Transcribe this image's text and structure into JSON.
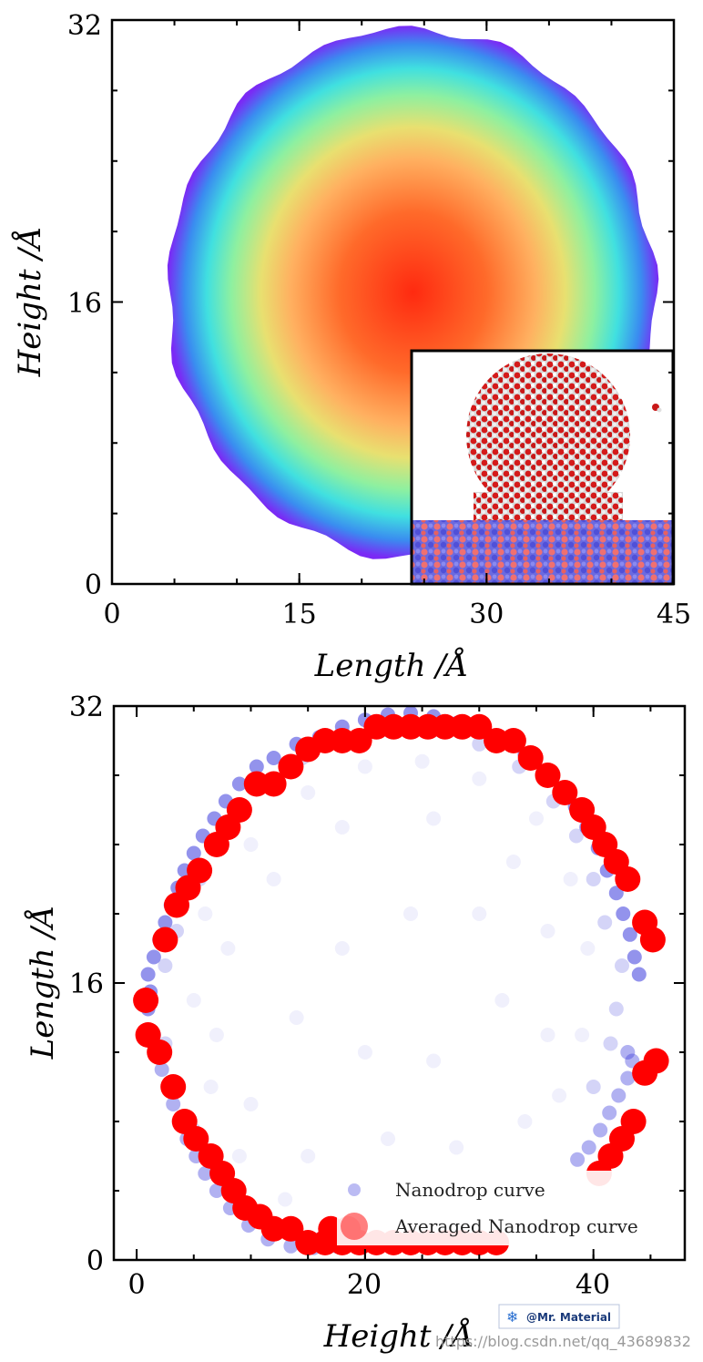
{
  "chart_data": [
    {
      "type": "heatmap",
      "title": "",
      "xlabel": "Length /Å",
      "ylabel": "Height /Å",
      "xlim": [
        0,
        45
      ],
      "ylim": [
        0,
        32
      ],
      "xticks": [
        0,
        15,
        30,
        45
      ],
      "yticks": [
        0,
        16,
        32
      ],
      "x_tick_labels": [
        "0",
        "15",
        "30",
        "45"
      ],
      "y_tick_labels": [
        "0",
        "16",
        "32"
      ],
      "drop": {
        "center_x": 24.0,
        "center_y": 16.5,
        "radius_x": 19.5,
        "radius_y": 15.0
      },
      "colormap": [
        "#ff2a10",
        "#ff6a2a",
        "#ffb060",
        "#e8e070",
        "#8ef0a0",
        "#40e0e0",
        "#3a8cf0",
        "#7a2af5"
      ],
      "inset": {
        "description": "molecular snapshot of water nanodrop on substrate"
      }
    },
    {
      "type": "scatter",
      "title": "",
      "xlabel": "Height /Å",
      "ylabel": "Length /Å",
      "xlim": [
        -2,
        48
      ],
      "ylim": [
        0,
        32
      ],
      "xticks": [
        0,
        20,
        40
      ],
      "yticks": [
        0,
        16,
        32
      ],
      "x_tick_labels": [
        "0",
        "20",
        "40"
      ],
      "y_tick_labels": [
        "0",
        "16",
        "32"
      ],
      "series": [
        {
          "name": "Nanodrop curve",
          "color": "#3b3bdc",
          "points": [
            [
              1.0,
              14.5
            ],
            [
              1.2,
              15.5
            ],
            [
              1.0,
              16.5
            ],
            [
              1.5,
              17.5
            ],
            [
              2.0,
              18.5
            ],
            [
              2.5,
              19.5
            ],
            [
              3.0,
              20.5
            ],
            [
              3.6,
              21.5
            ],
            [
              4.2,
              22.5
            ],
            [
              5.0,
              23.5
            ],
            [
              5.8,
              24.5
            ],
            [
              6.8,
              25.5
            ],
            [
              7.8,
              26.5
            ],
            [
              9.0,
              27.5
            ],
            [
              10.5,
              28.5
            ],
            [
              12.0,
              29.0
            ],
            [
              14.0,
              29.8
            ],
            [
              16.0,
              30.2
            ],
            [
              18.0,
              30.8
            ],
            [
              20.0,
              31.2
            ],
            [
              22.0,
              31.5
            ],
            [
              24.0,
              31.6
            ],
            [
              26.0,
              31.4
            ],
            [
              28.0,
              31.0
            ],
            [
              30.0,
              30.6
            ],
            [
              32.0,
              30.0
            ],
            [
              34.0,
              29.2
            ],
            [
              35.8,
              28.2
            ],
            [
              37.2,
              27.2
            ],
            [
              38.4,
              26.2
            ],
            [
              39.4,
              25.0
            ],
            [
              40.4,
              23.8
            ],
            [
              41.2,
              22.5
            ],
            [
              42.0,
              21.2
            ],
            [
              42.6,
              20.0
            ],
            [
              43.2,
              18.8
            ],
            [
              43.6,
              17.5
            ],
            [
              44.0,
              16.5
            ],
            [
              1.5,
              13.0
            ],
            [
              1.8,
              12.0
            ],
            [
              2.2,
              11.0
            ],
            [
              2.8,
              10.0
            ],
            [
              3.2,
              9.0
            ],
            [
              3.8,
              8.0
            ],
            [
              4.4,
              7.0
            ],
            [
              5.2,
              6.0
            ],
            [
              6.0,
              5.0
            ],
            [
              7.0,
              4.0
            ],
            [
              8.2,
              3.0
            ],
            [
              9.8,
              2.0
            ],
            [
              11.5,
              1.2
            ],
            [
              13.5,
              0.8
            ],
            [
              15.5,
              0.7
            ],
            [
              17.5,
              0.8
            ],
            [
              43.0,
              10.5
            ],
            [
              43.4,
              11.5
            ],
            [
              43.0,
              12.0
            ],
            [
              42.2,
              9.5
            ],
            [
              41.4,
              8.5
            ],
            [
              40.6,
              7.5
            ],
            [
              39.6,
              6.5
            ],
            [
              38.6,
              5.8
            ],
            [
              2.5,
              17.0
            ],
            [
              3.5,
              19.0
            ],
            [
              5.5,
              22.0
            ],
            [
              8.0,
              25.0
            ],
            [
              11.0,
              27.5
            ],
            [
              14.5,
              29.0
            ],
            [
              18.0,
              30.0
            ],
            [
              22.0,
              30.6
            ],
            [
              26.0,
              30.6
            ],
            [
              30.0,
              29.8
            ],
            [
              33.5,
              28.5
            ],
            [
              36.5,
              26.5
            ],
            [
              38.5,
              24.5
            ],
            [
              40.0,
              22.0
            ],
            [
              41.0,
              19.5
            ],
            [
              42.5,
              17.0
            ],
            [
              2.5,
              12.5
            ],
            [
              3.5,
              10.0
            ],
            [
              5.0,
              7.5
            ],
            [
              7.0,
              5.0
            ],
            [
              9.5,
              3.0
            ],
            [
              12.5,
              1.8
            ],
            [
              16.0,
              1.2
            ],
            [
              40.0,
              10.0
            ],
            [
              41.5,
              12.5
            ],
            [
              42.0,
              14.5
            ],
            [
              6.0,
              20.0
            ],
            [
              10.0,
              24.0
            ],
            [
              15.0,
              27.0
            ],
            [
              20.0,
              28.5
            ],
            [
              25.0,
              28.8
            ],
            [
              30.0,
              27.8
            ],
            [
              35.0,
              25.5
            ],
            [
              38.0,
              22.0
            ],
            [
              39.5,
              18.0
            ],
            [
              5.0,
              15.0
            ],
            [
              6.5,
              10.0
            ],
            [
              9.0,
              6.0
            ],
            [
              13.0,
              3.5
            ],
            [
              37.0,
              9.5
            ],
            [
              39.0,
              13.0
            ],
            [
              8.0,
              18.0
            ],
            [
              12.0,
              22.0
            ],
            [
              18.0,
              25.0
            ],
            [
              26.0,
              25.5
            ],
            [
              33.0,
              23.0
            ],
            [
              36.0,
              19.0
            ],
            [
              10.0,
              9.0
            ],
            [
              15.0,
              6.0
            ],
            [
              20.0,
              12.0
            ],
            [
              26.0,
              11.5
            ],
            [
              32.0,
              15.0
            ],
            [
              18.0,
              18.0
            ],
            [
              24.0,
              20.0
            ],
            [
              30.0,
              20.0
            ],
            [
              14.0,
              14.0
            ],
            [
              22.0,
              7.0
            ],
            [
              28.0,
              6.5
            ],
            [
              34.0,
              8.0
            ],
            [
              36.0,
              13.0
            ],
            [
              7.0,
              13.0
            ]
          ]
        },
        {
          "name": "Averaged Nanodrop curve",
          "color": "#ff0000",
          "points": [
            [
              2.5,
              18.5
            ],
            [
              3.5,
              20.5
            ],
            [
              4.5,
              21.5
            ],
            [
              5.5,
              22.5
            ],
            [
              7.0,
              24.0
            ],
            [
              8.0,
              25.0
            ],
            [
              9.0,
              26.0
            ],
            [
              10.5,
              27.5
            ],
            [
              12.0,
              27.5
            ],
            [
              13.5,
              28.5
            ],
            [
              15.0,
              29.5
            ],
            [
              16.5,
              30.0
            ],
            [
              18.0,
              30.0
            ],
            [
              19.5,
              30.0
            ],
            [
              21.0,
              30.8
            ],
            [
              22.5,
              30.8
            ],
            [
              24.0,
              30.8
            ],
            [
              25.5,
              30.8
            ],
            [
              27.0,
              30.8
            ],
            [
              28.5,
              30.8
            ],
            [
              30.0,
              30.8
            ],
            [
              31.5,
              30.0
            ],
            [
              33.0,
              30.0
            ],
            [
              34.5,
              29.0
            ],
            [
              36.0,
              28.0
            ],
            [
              37.5,
              27.0
            ],
            [
              39.0,
              26.0
            ],
            [
              40.0,
              25.0
            ],
            [
              41.0,
              24.0
            ],
            [
              42.0,
              23.0
            ],
            [
              43.0,
              22.0
            ],
            [
              44.5,
              19.5
            ],
            [
              45.2,
              18.5
            ],
            [
              45.5,
              11.5
            ],
            [
              44.5,
              10.8
            ],
            [
              43.5,
              8.0
            ],
            [
              42.5,
              7.0
            ],
            [
              41.5,
              6.0
            ],
            [
              40.5,
              5.0
            ],
            [
              0.8,
              15.0
            ],
            [
              1.0,
              13.0
            ],
            [
              2.0,
              12.0
            ],
            [
              3.2,
              10.0
            ],
            [
              4.2,
              8.0
            ],
            [
              5.2,
              7.0
            ],
            [
              6.5,
              6.0
            ],
            [
              7.5,
              5.0
            ],
            [
              8.5,
              4.0
            ],
            [
              9.5,
              3.0
            ],
            [
              10.8,
              2.5
            ],
            [
              12.0,
              1.8
            ],
            [
              13.5,
              1.8
            ],
            [
              15.0,
              1.0
            ],
            [
              16.5,
              1.0
            ],
            [
              18.0,
              1.0
            ],
            [
              19.5,
              1.0
            ],
            [
              21.0,
              1.0
            ],
            [
              22.5,
              1.0
            ],
            [
              24.0,
              1.0
            ],
            [
              25.5,
              1.0
            ],
            [
              27.0,
              1.0
            ],
            [
              28.5,
              1.0
            ],
            [
              30.0,
              1.0
            ],
            [
              31.5,
              1.0
            ],
            [
              17.0,
              1.8
            ],
            [
              18.5,
              1.8
            ]
          ]
        }
      ],
      "legend": {
        "position": "lower-right",
        "entries": [
          "Nanodrop curve",
          "Averaged Nanodrop curve"
        ]
      }
    }
  ],
  "watermark": {
    "badge_text": "@Mr. Material",
    "url_text": "https://blog.csdn.net/qq_43689832"
  },
  "colors": {
    "axis": "#000000",
    "blue": "#3b3bdc",
    "red": "#ff0000"
  }
}
